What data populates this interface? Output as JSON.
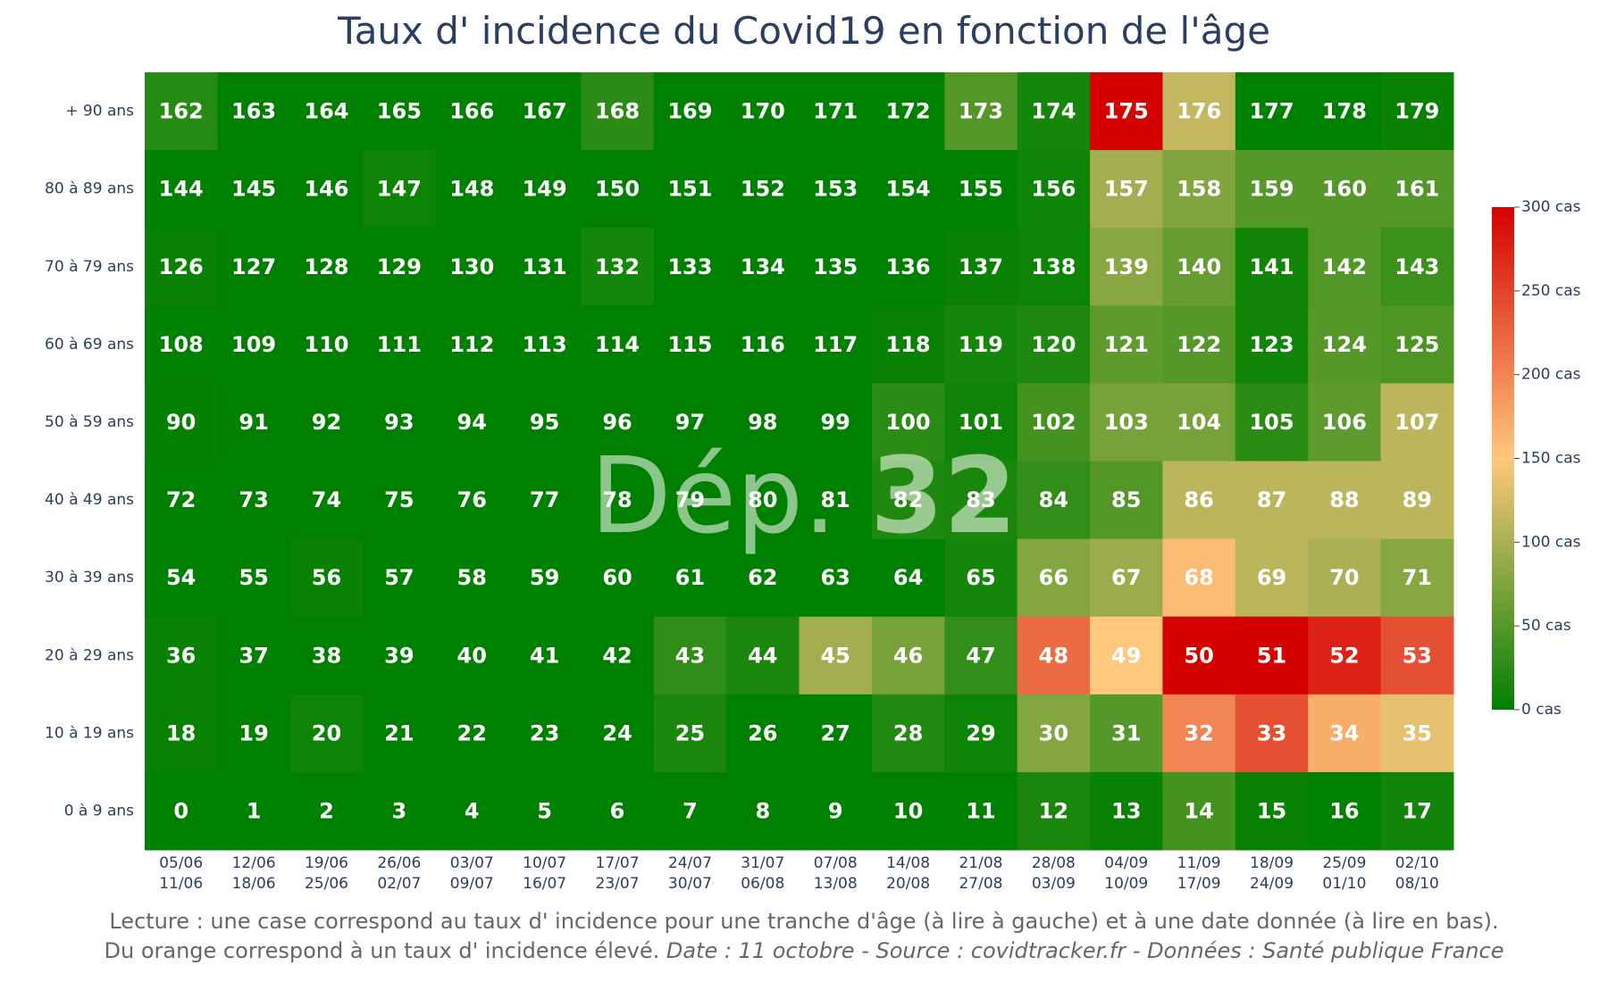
{
  "chart_data": {
    "type": "heatmap",
    "title": "Taux d' incidence du Covid19 en fonction de l'âge",
    "watermark": {
      "prefix": "Dép. ",
      "number": "32"
    },
    "y_categories": [
      "+ 90 ans",
      "80 à 89 ans",
      "70 à 79 ans",
      "60 à 69 ans",
      "50 à 59 ans",
      "40 à 49 ans",
      "30 à 39 ans",
      "20 à 29 ans",
      "10 à 19 ans",
      "0 à 9 ans"
    ],
    "x_categories": [
      {
        "line1": "05/06",
        "line2": "11/06"
      },
      {
        "line1": "12/06",
        "line2": "18/06"
      },
      {
        "line1": "19/06",
        "line2": "25/06"
      },
      {
        "line1": "26/06",
        "line2": "02/07"
      },
      {
        "line1": "03/07",
        "line2": "09/07"
      },
      {
        "line1": "10/07",
        "line2": "16/07"
      },
      {
        "line1": "17/07",
        "line2": "23/07"
      },
      {
        "line1": "24/07",
        "line2": "30/07"
      },
      {
        "line1": "31/07",
        "line2": "06/08"
      },
      {
        "line1": "07/08",
        "line2": "13/08"
      },
      {
        "line1": "14/08",
        "line2": "20/08"
      },
      {
        "line1": "21/08",
        "line2": "27/08"
      },
      {
        "line1": "28/08",
        "line2": "03/09"
      },
      {
        "line1": "04/09",
        "line2": "10/09"
      },
      {
        "line1": "11/09",
        "line2": "17/09"
      },
      {
        "line1": "18/09",
        "line2": "24/09"
      },
      {
        "line1": "25/09",
        "line2": "01/10"
      },
      {
        "line1": "02/10",
        "line2": "08/10"
      }
    ],
    "labels": [
      [
        162,
        163,
        164,
        165,
        166,
        167,
        168,
        169,
        170,
        171,
        172,
        173,
        174,
        175,
        176,
        177,
        178,
        179
      ],
      [
        144,
        145,
        146,
        147,
        148,
        149,
        150,
        151,
        152,
        153,
        154,
        155,
        156,
        157,
        158,
        159,
        160,
        161
      ],
      [
        126,
        127,
        128,
        129,
        130,
        131,
        132,
        133,
        134,
        135,
        136,
        137,
        138,
        139,
        140,
        141,
        142,
        143
      ],
      [
        108,
        109,
        110,
        111,
        112,
        113,
        114,
        115,
        116,
        117,
        118,
        119,
        120,
        121,
        122,
        123,
        124,
        125
      ],
      [
        90,
        91,
        92,
        93,
        94,
        95,
        96,
        97,
        98,
        99,
        100,
        101,
        102,
        103,
        104,
        105,
        106,
        107
      ],
      [
        72,
        73,
        74,
        75,
        76,
        77,
        78,
        79,
        80,
        81,
        82,
        83,
        84,
        85,
        86,
        87,
        88,
        89
      ],
      [
        54,
        55,
        56,
        57,
        58,
        59,
        60,
        61,
        62,
        63,
        64,
        65,
        66,
        67,
        68,
        69,
        70,
        71
      ],
      [
        36,
        37,
        38,
        39,
        40,
        41,
        42,
        43,
        44,
        45,
        46,
        47,
        48,
        49,
        50,
        51,
        52,
        53
      ],
      [
        18,
        19,
        20,
        21,
        22,
        23,
        24,
        25,
        26,
        27,
        28,
        29,
        30,
        31,
        32,
        33,
        34,
        35
      ],
      [
        0,
        1,
        2,
        3,
        4,
        5,
        6,
        7,
        8,
        9,
        10,
        11,
        12,
        13,
        14,
        15,
        16,
        17
      ]
    ],
    "values": [
      [
        22,
        0,
        0,
        0,
        0,
        0,
        25,
        0,
        0,
        0,
        0,
        48,
        12,
        300,
        115,
        0,
        0,
        5
      ],
      [
        0,
        0,
        0,
        8,
        0,
        0,
        0,
        0,
        0,
        0,
        0,
        0,
        8,
        95,
        75,
        50,
        50,
        48
      ],
      [
        5,
        0,
        0,
        0,
        0,
        0,
        12,
        0,
        0,
        0,
        0,
        5,
        8,
        80,
        60,
        10,
        48,
        35
      ],
      [
        0,
        0,
        0,
        0,
        0,
        0,
        0,
        0,
        0,
        0,
        5,
        12,
        18,
        55,
        50,
        10,
        50,
        45
      ],
      [
        3,
        0,
        0,
        0,
        0,
        0,
        0,
        0,
        0,
        0,
        25,
        8,
        40,
        70,
        70,
        25,
        55,
        110
      ],
      [
        0,
        0,
        0,
        0,
        0,
        0,
        0,
        0,
        0,
        0,
        18,
        15,
        30,
        48,
        110,
        110,
        110,
        110
      ],
      [
        0,
        0,
        5,
        0,
        0,
        0,
        0,
        0,
        0,
        0,
        0,
        12,
        78,
        92,
        160,
        110,
        100,
        80
      ],
      [
        5,
        0,
        0,
        0,
        0,
        0,
        0,
        28,
        15,
        95,
        70,
        30,
        220,
        150,
        300,
        300,
        275,
        240
      ],
      [
        5,
        0,
        8,
        0,
        0,
        0,
        0,
        15,
        0,
        0,
        20,
        8,
        78,
        50,
        200,
        240,
        170,
        135
      ],
      [
        0,
        0,
        0,
        0,
        0,
        0,
        0,
        0,
        0,
        0,
        0,
        0,
        15,
        5,
        40,
        5,
        0,
        10
      ]
    ],
    "zmin": 0,
    "zmax": 300,
    "colorscale": [
      "#008000",
      "#ffc87c",
      "#d50000"
    ],
    "colorbar": {
      "ticks": [
        0,
        50,
        100,
        150,
        200,
        250,
        300
      ],
      "tick_labels": [
        "0 cas",
        "50 cas",
        "100 cas",
        "150 cas",
        "200 cas",
        "250 cas",
        "300 cas"
      ]
    }
  },
  "footer": {
    "line1": "Lecture : une case correspond au taux d' incidence pour une tranche d'âge (à lire à gauche) et à une date donnée (à lire en bas).",
    "line2_plain": "Du orange correspond à un taux d' incidence élevé.  ",
    "line2_italic": "Date : 11 octobre - Source : covidtracker.fr - Données : Santé publique France"
  }
}
